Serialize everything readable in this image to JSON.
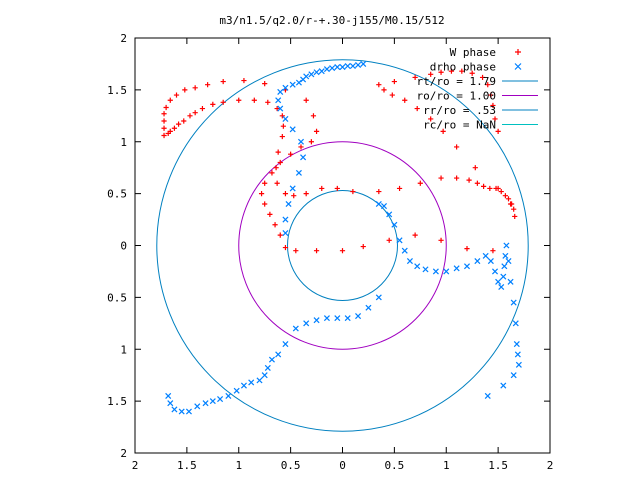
{
  "chart_data": {
    "type": "scatter",
    "title": "m3/n1.5/q2.0/r-+.30-j155/M0.15/512",
    "xlabel": "",
    "ylabel": "",
    "xlim": [
      -2,
      2
    ],
    "ylim": [
      -2,
      2
    ],
    "x_tick_values": [
      -2,
      -1.5,
      -1,
      -0.5,
      0,
      0.5,
      1,
      1.5,
      2
    ],
    "x_tick_labels": [
      "2",
      "1.5",
      "1",
      "0.5",
      "0",
      "0.5",
      "1",
      "1.5",
      "2"
    ],
    "y_tick_values": [
      2,
      1.5,
      1,
      0.5,
      0,
      -0.5,
      -1,
      -1.5,
      -2
    ],
    "y_tick_labels": [
      "2",
      "1.5",
      "1",
      "0.5",
      "0",
      "0.5",
      "1",
      "1.5",
      "2"
    ],
    "grid": false,
    "legend_position": "top-right",
    "legend": [
      {
        "label": "W phase",
        "color": "#ff0000",
        "marker": "plus"
      },
      {
        "label": "drho phase",
        "color": "#0080ff",
        "marker": "x"
      },
      {
        "label": "rt/ro = 1.79",
        "color": "#0080c0",
        "marker": "line"
      },
      {
        "label": "ro/ro = 1.00",
        "color": "#a000c0",
        "marker": "line"
      },
      {
        "label": "rr/ro = .53",
        "color": "#0080c0",
        "marker": "line"
      },
      {
        "label": "rc/ro = NaN",
        "color": "#00c0c0",
        "marker": "line"
      }
    ],
    "circles": [
      {
        "label": "rt/ro = 1.79",
        "r": 1.79,
        "color": "#0080c0"
      },
      {
        "label": "ro/ro = 1.00",
        "r": 1.0,
        "color": "#a000c0"
      },
      {
        "label": "rr/ro = .53",
        "r": 0.53,
        "color": "#0080c0"
      }
    ],
    "series": [
      {
        "name": "W phase",
        "color": "#ff0000",
        "x": [
          -1.68,
          -1.66,
          -1.62,
          -1.58,
          -1.53,
          -1.47,
          -1.42,
          -1.35,
          -1.25,
          -1.15,
          -1.0,
          -0.85,
          -0.72,
          -0.63,
          -0.58,
          -0.57,
          -0.58,
          -0.62,
          -0.64,
          -0.63,
          -0.55,
          -0.47,
          -0.35,
          -0.2,
          -0.05,
          0.1,
          0.35,
          0.55,
          0.75,
          0.95,
          1.1,
          1.22,
          1.3,
          1.36,
          1.42,
          1.48,
          1.53,
          1.57,
          1.6,
          1.63,
          1.65,
          1.66,
          1.62,
          1.5,
          1.28,
          1.1,
          0.97,
          0.85,
          0.72,
          0.6,
          0.48,
          0.4,
          0.35,
          0.5,
          0.7,
          0.85,
          0.95,
          1.05,
          1.15,
          1.25,
          1.35,
          1.4,
          1.43,
          1.45,
          1.47,
          1.5,
          1.45,
          1.2,
          0.95,
          0.7,
          0.45,
          0.2,
          0.0,
          -0.25,
          -0.45,
          -0.55,
          -0.6,
          -0.65,
          -0.7,
          -0.75,
          -0.78,
          -0.75,
          -0.68,
          -0.6,
          -0.5,
          -0.4,
          -0.3,
          -0.25,
          -0.28,
          -0.35,
          -0.55,
          -0.75,
          -0.95,
          -1.15,
          -1.3,
          -1.42,
          -1.52,
          -1.6,
          -1.66,
          -1.7,
          -1.72,
          -1.72,
          -1.72,
          -1.72
        ],
        "y": [
          1.08,
          1.1,
          1.13,
          1.17,
          1.2,
          1.25,
          1.28,
          1.32,
          1.36,
          1.38,
          1.4,
          1.4,
          1.38,
          1.32,
          1.25,
          1.15,
          1.05,
          0.9,
          0.75,
          0.6,
          0.5,
          0.48,
          0.5,
          0.55,
          0.55,
          0.52,
          0.52,
          0.55,
          0.6,
          0.65,
          0.65,
          0.63,
          0.6,
          0.57,
          0.55,
          0.55,
          0.52,
          0.48,
          0.45,
          0.4,
          0.35,
          0.28,
          0.4,
          0.55,
          0.75,
          0.95,
          1.1,
          1.22,
          1.32,
          1.4,
          1.45,
          1.5,
          1.55,
          1.58,
          1.62,
          1.65,
          1.67,
          1.68,
          1.68,
          1.66,
          1.62,
          1.55,
          1.45,
          1.35,
          1.22,
          1.1,
          -0.05,
          -0.03,
          0.05,
          0.1,
          0.05,
          -0.01,
          -0.05,
          -0.05,
          -0.05,
          -0.02,
          0.1,
          0.2,
          0.3,
          0.4,
          0.5,
          0.6,
          0.7,
          0.8,
          0.88,
          0.95,
          1.0,
          1.1,
          1.25,
          1.4,
          1.5,
          1.56,
          1.59,
          1.58,
          1.55,
          1.52,
          1.5,
          1.45,
          1.4,
          1.33,
          1.27,
          1.2,
          1.13,
          1.06
        ],
        "_note": ""
      },
      {
        "name": "drho phase",
        "color": "#0080ff",
        "x": [
          -0.55,
          -0.55,
          -0.52,
          -0.48,
          -0.42,
          -0.38,
          -0.4,
          -0.48,
          -0.55,
          -0.6,
          -0.62,
          -0.6,
          -0.55,
          -0.48,
          -0.42,
          -0.38,
          -0.35,
          -0.3,
          -0.25,
          -0.2,
          -0.15,
          -0.1,
          -0.05,
          0.0,
          0.05,
          0.1,
          0.15,
          0.2,
          0.35,
          0.4,
          0.45,
          0.5,
          0.55,
          0.6,
          0.65,
          0.72,
          0.8,
          0.9,
          1.0,
          1.1,
          1.2,
          1.3,
          1.38,
          1.43,
          1.47,
          1.5,
          1.53,
          1.55,
          1.56,
          1.57,
          1.58,
          1.6,
          1.62,
          1.65,
          1.67,
          1.68,
          1.69,
          1.7,
          1.65,
          1.55,
          1.4,
          0.35,
          0.25,
          0.15,
          0.05,
          -0.05,
          -0.15,
          -0.25,
          -0.35,
          -0.45,
          -0.55,
          -0.62,
          -0.68,
          -0.72,
          -0.75,
          -0.8,
          -0.88,
          -0.95,
          -1.02,
          -1.1,
          -1.18,
          -1.25,
          -1.32,
          -1.4,
          -1.48,
          -1.55,
          -1.62,
          -1.66,
          -1.68
        ],
        "y": [
          0.12,
          0.25,
          0.4,
          0.55,
          0.7,
          0.85,
          1.0,
          1.12,
          1.22,
          1.32,
          1.4,
          1.48,
          1.52,
          1.55,
          1.57,
          1.6,
          1.63,
          1.65,
          1.67,
          1.68,
          1.7,
          1.71,
          1.72,
          1.72,
          1.73,
          1.73,
          1.74,
          1.75,
          0.4,
          0.38,
          0.3,
          0.2,
          0.05,
          -0.05,
          -0.15,
          -0.2,
          -0.23,
          -0.25,
          -0.25,
          -0.22,
          -0.2,
          -0.15,
          -0.1,
          -0.15,
          -0.25,
          -0.35,
          -0.4,
          -0.3,
          -0.2,
          -0.1,
          0.0,
          -0.15,
          -0.35,
          -0.55,
          -0.75,
          -0.95,
          -1.05,
          -1.15,
          -1.25,
          -1.35,
          -1.45,
          -0.5,
          -0.6,
          -0.68,
          -0.7,
          -0.7,
          -0.7,
          -0.72,
          -0.75,
          -0.8,
          -0.95,
          -1.05,
          -1.1,
          -1.18,
          -1.25,
          -1.3,
          -1.32,
          -1.35,
          -1.4,
          -1.45,
          -1.48,
          -1.5,
          -1.52,
          -1.55,
          -1.6,
          -1.6,
          -1.58,
          -1.52,
          -1.45
        ]
      }
    ]
  }
}
